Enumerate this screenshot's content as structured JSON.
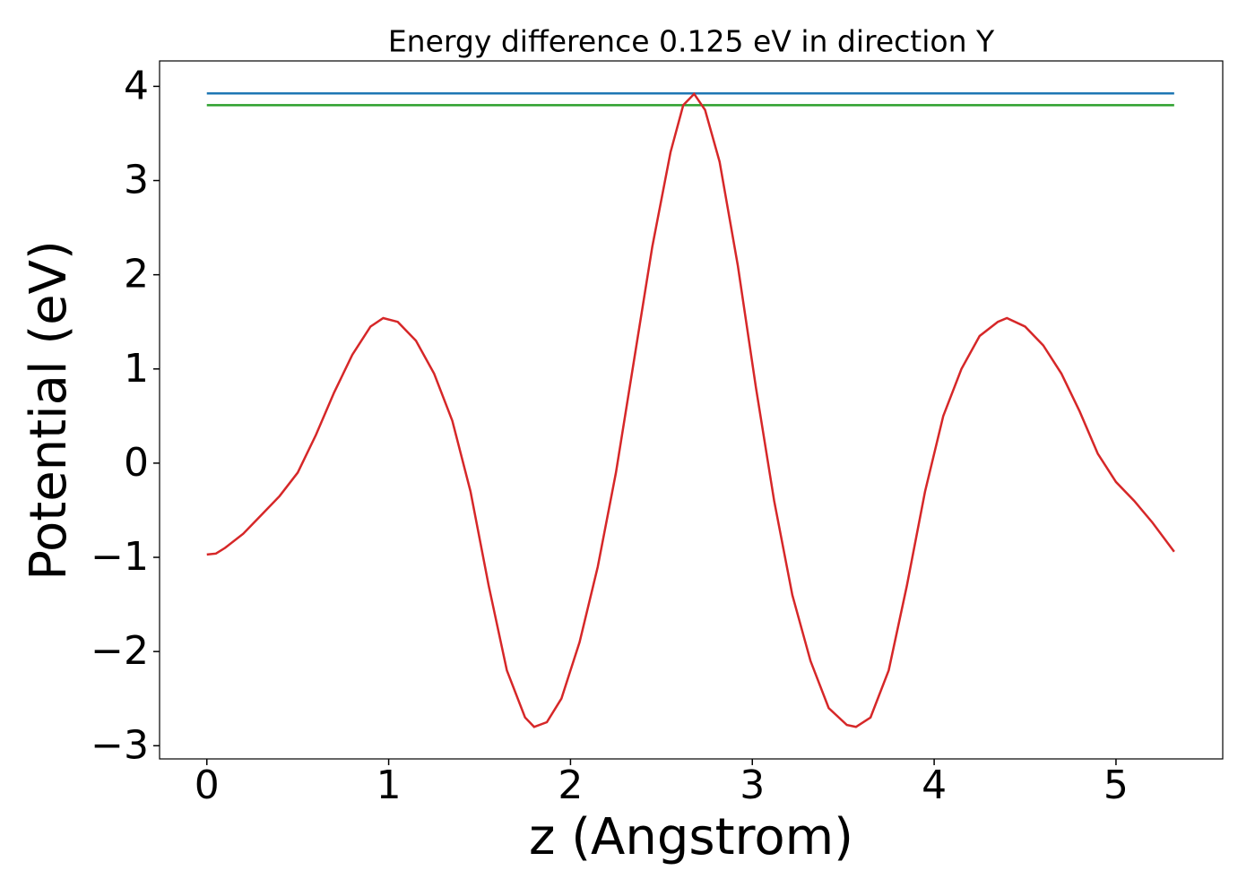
{
  "chart_data": {
    "type": "line",
    "title": "Energy difference 0.125 eV in direction Y",
    "xlabel": "z (Angstrom)",
    "ylabel": "Potential (eV)",
    "xlim": [
      -0.26,
      5.587
    ],
    "ylim": [
      -3.14,
      4.27
    ],
    "xticks": [
      0,
      1,
      2,
      3,
      4,
      5
    ],
    "yticks": [
      {
        "value": -3,
        "label": "−3"
      },
      {
        "value": -2,
        "label": "−2"
      },
      {
        "value": -1,
        "label": "−1"
      },
      0,
      1,
      2,
      3,
      4
    ],
    "series": [
      {
        "color": "#1f77b4",
        "x": [
          0,
          5.32
        ],
        "values": [
          3.925,
          3.925
        ]
      },
      {
        "color": "#2ca02c",
        "x": [
          0,
          5.32
        ],
        "values": [
          3.8,
          3.8
        ]
      },
      {
        "color": "#d62728",
        "x": [
          0,
          0.05,
          0.1,
          0.2,
          0.3,
          0.4,
          0.5,
          0.6,
          0.7,
          0.8,
          0.9,
          0.97,
          1.05,
          1.15,
          1.25,
          1.35,
          1.45,
          1.55,
          1.65,
          1.75,
          1.8,
          1.87,
          1.95,
          2.05,
          2.15,
          2.25,
          2.35,
          2.45,
          2.55,
          2.62,
          2.68,
          2.74,
          2.82,
          2.92,
          3.02,
          3.12,
          3.22,
          3.32,
          3.42,
          3.52,
          3.57,
          3.65,
          3.75,
          3.85,
          3.95,
          4.05,
          4.15,
          4.25,
          4.35,
          4.4,
          4.5,
          4.6,
          4.7,
          4.8,
          4.9,
          5.0,
          5.1,
          5.2,
          5.32
        ],
        "values": [
          -0.97,
          -0.96,
          -0.9,
          -0.75,
          -0.55,
          -0.35,
          -0.1,
          0.3,
          0.75,
          1.15,
          1.45,
          1.54,
          1.5,
          1.3,
          0.95,
          0.45,
          -0.3,
          -1.3,
          -2.2,
          -2.7,
          -2.8,
          -2.75,
          -2.5,
          -1.9,
          -1.1,
          -0.1,
          1.1,
          2.3,
          3.3,
          3.8,
          3.92,
          3.75,
          3.2,
          2.1,
          0.8,
          -0.4,
          -1.4,
          -2.1,
          -2.6,
          -2.78,
          -2.8,
          -2.7,
          -2.2,
          -1.3,
          -0.3,
          0.5,
          1.0,
          1.35,
          1.5,
          1.54,
          1.45,
          1.25,
          0.95,
          0.55,
          0.1,
          -0.2,
          -0.4,
          -0.63,
          -0.94
        ]
      }
    ]
  }
}
